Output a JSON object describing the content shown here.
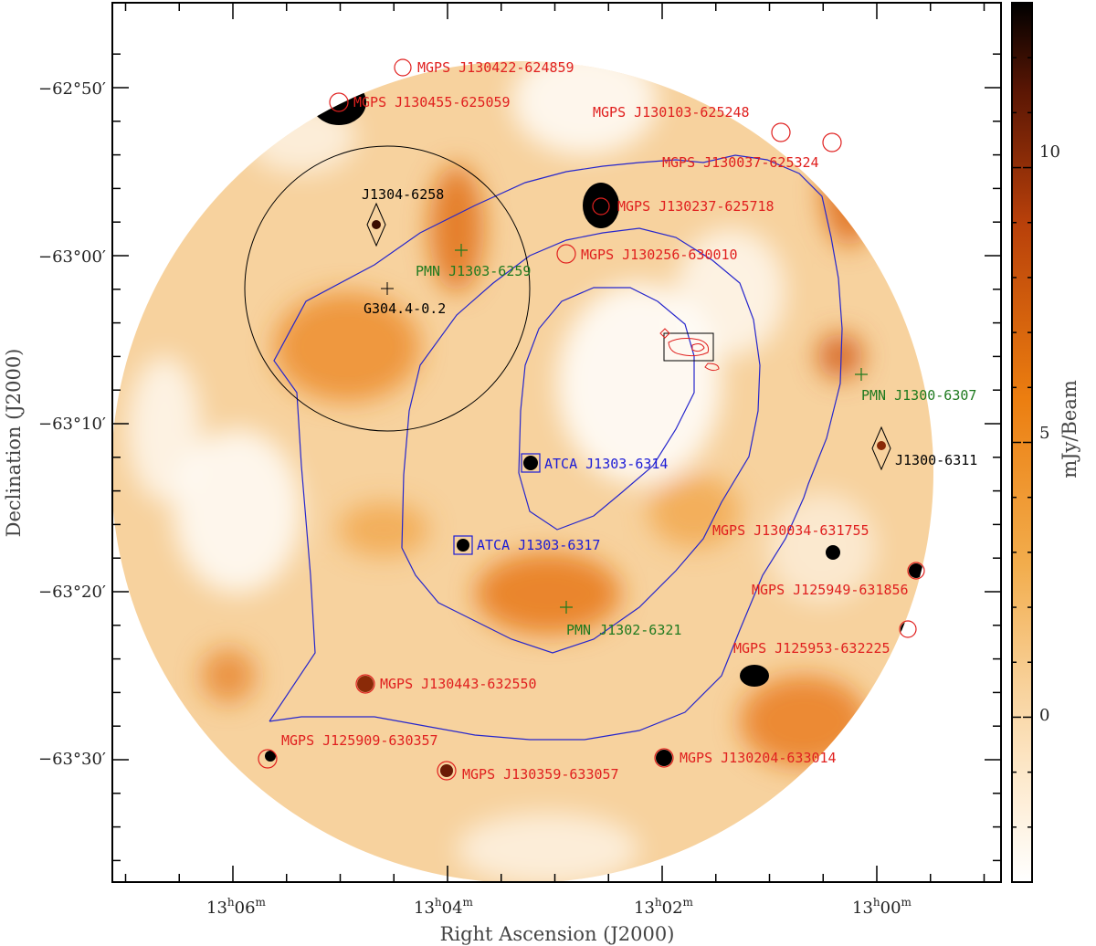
{
  "chart_data": {
    "type": "heatmap",
    "xlabel": "Right Ascension (J2000)",
    "ylabel": "Declination (J2000)",
    "colorbar_label": "mJy/Beam",
    "x_ticks": [
      {
        "value": "13h06m",
        "h": "13",
        "m": "06"
      },
      {
        "value": "13h04m",
        "h": "13",
        "m": "04"
      },
      {
        "value": "13h02m",
        "h": "13",
        "m": "02"
      },
      {
        "value": "13h00m",
        "h": "13",
        "m": "00"
      }
    ],
    "y_ticks": [
      "−62°50′",
      "−63°00′",
      "−63°10′",
      "−63°20′",
      "−63°30′"
    ],
    "colorbar_ticks": [
      10,
      5,
      0
    ],
    "colorbar_range": [
      -3,
      13
    ],
    "ra_range_min": [
      13.115,
      12.968
    ],
    "dec_range_arcmin": [
      -62.73,
      -63.575
    ],
    "colormap": [
      "#ffffff",
      "#fbe7c6",
      "#f7c98b",
      "#f2a640",
      "#ea7a10",
      "#c0440a",
      "#6b1a06",
      "#000000"
    ],
    "colors": {
      "mgps": "#e0201f",
      "atca": "#1c1cd6",
      "pmn": "#1f7a1f",
      "misc": "#000000",
      "contour": "#2626cc"
    },
    "mgps_sources": [
      {
        "label": "MGPS J130422-624859"
      },
      {
        "label": "MGPS J130455-625059"
      },
      {
        "label": "MGPS J130103-625248"
      },
      {
        "label": "MGPS J130037-625324"
      },
      {
        "label": "MGPS J130237-625718"
      },
      {
        "label": "MGPS J130256-630010"
      },
      {
        "label": "MGPS J130034-631755"
      },
      {
        "label": "MGPS J125949-631856"
      },
      {
        "label": "MGPS J125953-632225"
      },
      {
        "label": "MGPS J130443-632550"
      },
      {
        "label": "MGPS J125909-630357"
      },
      {
        "label": "MGPS J130359-633057"
      },
      {
        "label": "MGPS J130204-633014"
      }
    ],
    "atca_sources": [
      {
        "label": "ATCA J1303-6314"
      },
      {
        "label": "ATCA J1303-6317"
      }
    ],
    "pmn_sources": [
      {
        "label": "PMN J1303-6259"
      },
      {
        "label": "PMN J1300-6307"
      },
      {
        "label": "PMN J1302-6321"
      }
    ],
    "other_sources": [
      {
        "label": "J1304-6258"
      },
      {
        "label": "G304.4-0.2"
      },
      {
        "label": "J1300-6311"
      }
    ]
  }
}
